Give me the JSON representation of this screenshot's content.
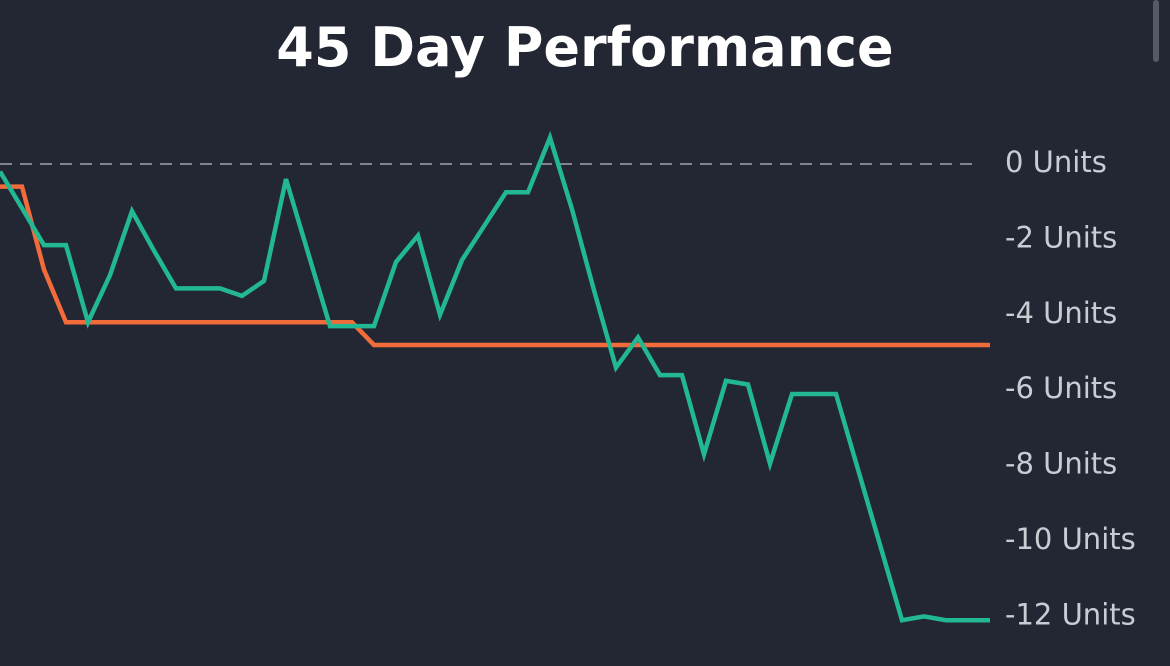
{
  "chart_data": {
    "type": "line",
    "title": "45 Day Performance",
    "categories": [
      null,
      null,
      null,
      null,
      null,
      null,
      null,
      null,
      null,
      null,
      null,
      null,
      null,
      null,
      null,
      null,
      null,
      null,
      null,
      null,
      null,
      null,
      null,
      null,
      null,
      null,
      null,
      null,
      null,
      null,
      null,
      null,
      null,
      null,
      null,
      null,
      null,
      null,
      null,
      null,
      null,
      null,
      null,
      null,
      null,
      null
    ],
    "series": [
      {
        "color": "#f26b3a",
        "values": [
          -0.6,
          -0.6,
          -2.8,
          -4.2,
          -4.2,
          -4.2,
          -4.2,
          -4.2,
          -4.2,
          -4.2,
          -4.2,
          -4.2,
          -4.2,
          -4.2,
          -4.2,
          -4.2,
          -4.2,
          -4.8,
          -4.8,
          -4.8,
          -4.8,
          -4.8,
          -4.8,
          -4.8,
          -4.8,
          -4.8,
          -4.8,
          -4.8,
          -4.8,
          -4.8,
          -4.8,
          -4.8,
          -4.8,
          -4.8,
          -4.8,
          -4.8,
          -4.8,
          -4.8,
          -4.8,
          -4.8,
          -4.8,
          -4.8,
          -4.8,
          -4.8,
          -4.8,
          -4.8
        ]
      },
      {
        "color": "#22b892",
        "values": [
          -0.2,
          -1.17,
          -2.15,
          -2.15,
          -4.2,
          -2.95,
          -1.25,
          -2.3,
          -3.3,
          -3.3,
          -3.3,
          -3.5,
          -3.1,
          -0.4,
          -2.35,
          -4.3,
          -4.3,
          -4.3,
          -2.6,
          -1.9,
          -4.0,
          -2.55,
          -1.65,
          -0.75,
          -0.75,
          0.7,
          -1.2,
          -3.35,
          -5.4,
          -4.6,
          -5.6,
          -5.6,
          -7.7,
          -5.75,
          -5.85,
          -7.95,
          -6.1,
          -6.1,
          -6.1,
          -8.1,
          -10.1,
          -12.1,
          -12.0,
          -12.1,
          -12.1,
          -12.1
        ]
      }
    ],
    "ylim": [
      -13.3,
      1.5
    ],
    "yticks": [
      {
        "value": 0,
        "label": "0 Units"
      },
      {
        "value": -2,
        "label": "-2 Units"
      },
      {
        "value": -4,
        "label": "-4 Units"
      },
      {
        "value": -6,
        "label": "-6 Units"
      },
      {
        "value": -8,
        "label": "-8 Units"
      },
      {
        "value": -10,
        "label": "-10 Units"
      },
      {
        "value": -12,
        "label": "-12 Units"
      }
    ],
    "zero_line": true
  }
}
